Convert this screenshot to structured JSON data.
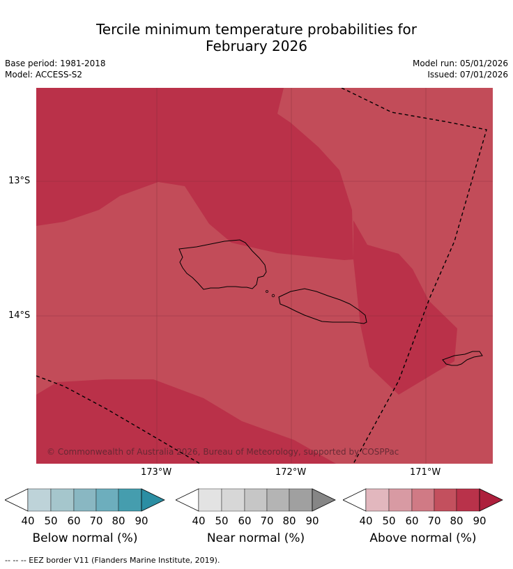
{
  "title_line1": "Tercile minimum temperature probabilities for",
  "title_line2": "February 2026",
  "base_period": "Base period: 1981-2018",
  "model": "Model: ACCESS-S2",
  "model_run": "Model run: 05/01/2026",
  "issued": "Issued: 07/01/2026",
  "lat_labels": [
    "13°S",
    "14°S"
  ],
  "lon_labels": [
    "173°W",
    "172°W",
    "171°W"
  ],
  "copyright": "© Commonwealth of Australia 2026, Bureau of Meteorology, supported by COSPPac",
  "colorbars": [
    {
      "label": "Below normal (%)",
      "ticks": [
        "40",
        "50",
        "60",
        "70",
        "80",
        "90"
      ],
      "colors": [
        "#ffffff",
        "#bed3d9",
        "#a5c6cc",
        "#89b7c2",
        "#6daebd",
        "#459dae",
        "#2b8ea3"
      ]
    },
    {
      "label": "Near normal (%)",
      "ticks": [
        "40",
        "50",
        "60",
        "70",
        "80",
        "90"
      ],
      "colors": [
        "#ffffff",
        "#e3e3e3",
        "#d7d7d7",
        "#c6c6c6",
        "#b4b4b4",
        "#a0a0a0",
        "#868686"
      ]
    },
    {
      "label": "Above normal (%)",
      "ticks": [
        "40",
        "50",
        "60",
        "70",
        "80",
        "90"
      ],
      "colors": [
        "#ffffff",
        "#e2b7be",
        "#d89aa3",
        "#d07a85",
        "#c3505e",
        "#b9324a",
        "#ad1f3c"
      ]
    }
  ],
  "map_colors": {
    "above_70_80": "#c24c59",
    "above_80_90": "#ba3149"
  },
  "footnote": "--  --  -- EEZ border V11 (Flanders Marine Institute, 2019)."
}
